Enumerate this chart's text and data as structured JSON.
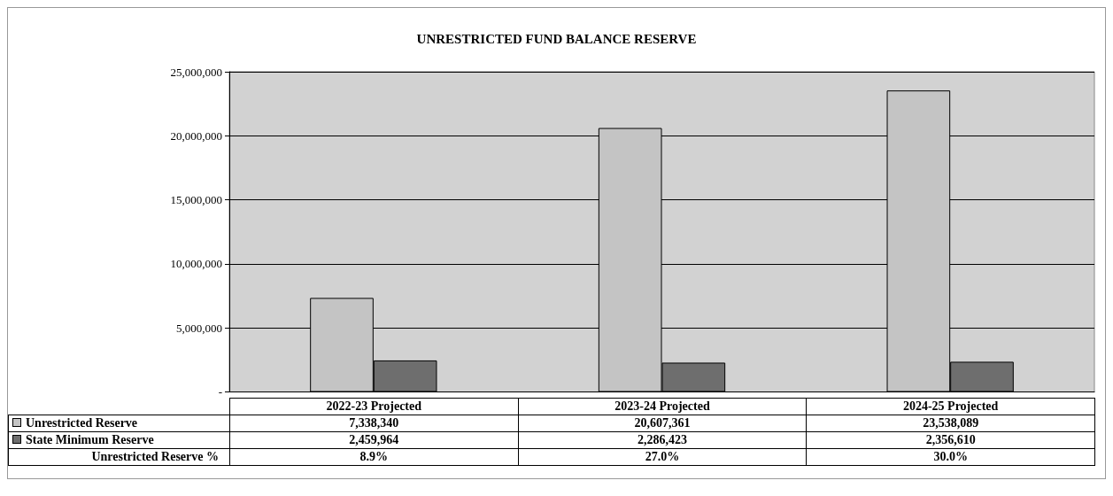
{
  "chart_data": {
    "type": "bar",
    "title": "UNRESTRICTED FUND BALANCE RESERVE",
    "categories": [
      "2022-23 Projected",
      "2023-24 Projected",
      "2024-25 Projected"
    ],
    "series": [
      {
        "name": "Unrestricted Reserve",
        "color": "#c4c4c4",
        "values": [
          7338340,
          20607361,
          23538089
        ],
        "value_labels": [
          "7,338,340",
          "20,607,361",
          "23,538,089"
        ]
      },
      {
        "name": "State Minimum Reserve",
        "color": "#6e6e6e",
        "values": [
          2459964,
          2286423,
          2356610
        ],
        "value_labels": [
          "2,459,964",
          "2,286,423",
          "2,356,610"
        ]
      }
    ],
    "ylim": [
      0,
      25000000
    ],
    "yticks": [
      {
        "value": 0,
        "label": "-"
      },
      {
        "value": 5000000,
        "label": "5,000,000"
      },
      {
        "value": 10000000,
        "label": "10,000,000"
      },
      {
        "value": 15000000,
        "label": "15,000,000"
      },
      {
        "value": 20000000,
        "label": "20,000,000"
      },
      {
        "value": 25000000,
        "label": "25,000,000"
      }
    ],
    "grid": "y",
    "legend": "bottom",
    "annotations": [
      "Unrestricted Reserve %",
      "8.9%",
      "27.0%",
      "30.0%"
    ]
  }
}
